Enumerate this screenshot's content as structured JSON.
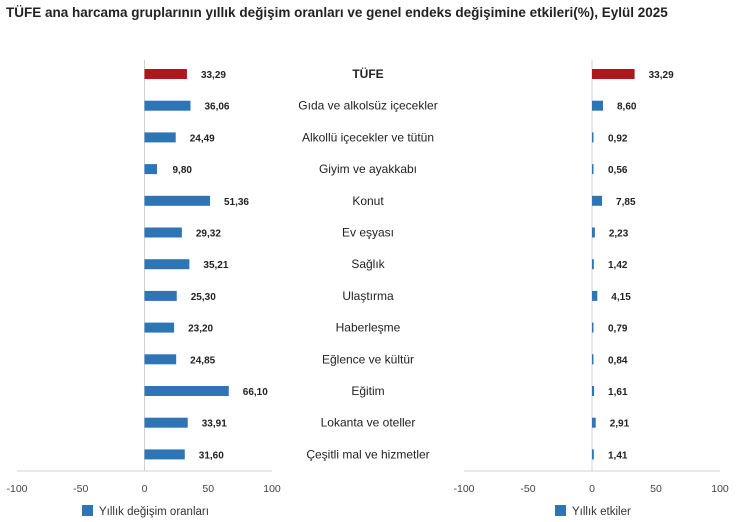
{
  "chart_data": [
    {
      "type": "bar",
      "orientation": "horizontal",
      "title": "TÜFE ana harcama gruplarının yıllık değişim oranları ve genel endeks değişimine etkileri(%), Eylül 2025",
      "categories": [
        "TÜFE",
        "Gıda ve alkolsüz içecekler",
        "Alkollü içecekler ve tütün",
        "Giyim ve ayakkabı",
        "Konut",
        "Ev eşyası",
        "Sağlık",
        "Ulaştırma",
        "Haberleşme",
        "Eğlence ve kültür",
        "Eğitim",
        "Lokanta ve oteller",
        "Çeşitli mal ve hizmetler"
      ],
      "series": [
        {
          "name": "Yıllık değişim oranları",
          "values": [
            33.29,
            36.06,
            24.49,
            9.8,
            51.36,
            29.32,
            35.21,
            25.3,
            23.2,
            24.85,
            66.1,
            33.91,
            31.6
          ]
        }
      ],
      "data_labels": [
        "33,29",
        "36,06",
        "24,49",
        "9,80",
        "51,36",
        "29,32",
        "35,21",
        "25,30",
        "23,20",
        "24,85",
        "66,10",
        "33,91",
        "31,60"
      ],
      "xlim": [
        -100,
        100
      ],
      "xticks": [
        "-100",
        "-50",
        "0",
        "50",
        "100"
      ],
      "legend": "bottom",
      "grid": false
    },
    {
      "type": "bar",
      "orientation": "horizontal",
      "categories": [
        "TÜFE",
        "Gıda ve alkolsüz içecekler",
        "Alkollü içecekler ve tütün",
        "Giyim ve ayakkabı",
        "Konut",
        "Ev eşyası",
        "Sağlık",
        "Ulaştırma",
        "Haberleşme",
        "Eğlence ve kültür",
        "Eğitim",
        "Lokanta ve oteller",
        "Çeşitli mal ve hizmetler"
      ],
      "series": [
        {
          "name": "Yıllık etkiler",
          "values": [
            33.29,
            8.6,
            0.92,
            0.56,
            7.85,
            2.23,
            1.42,
            4.15,
            0.79,
            0.84,
            1.61,
            2.91,
            1.41
          ]
        }
      ],
      "data_labels": [
        "33,29",
        "8,60",
        "0,92",
        "0,56",
        "7,85",
        "2,23",
        "1,42",
        "4,15",
        "0,79",
        "0,84",
        "1,61",
        "2,91",
        "1,41"
      ],
      "xlim": [
        -100,
        100
      ],
      "xticks": [
        "-100",
        "-50",
        "0",
        "50",
        "100"
      ],
      "legend": "bottom",
      "grid": false
    }
  ],
  "colors": {
    "highlight": "#b0161e",
    "bar": "#2e75b6",
    "axis": "#d0d0d0"
  }
}
